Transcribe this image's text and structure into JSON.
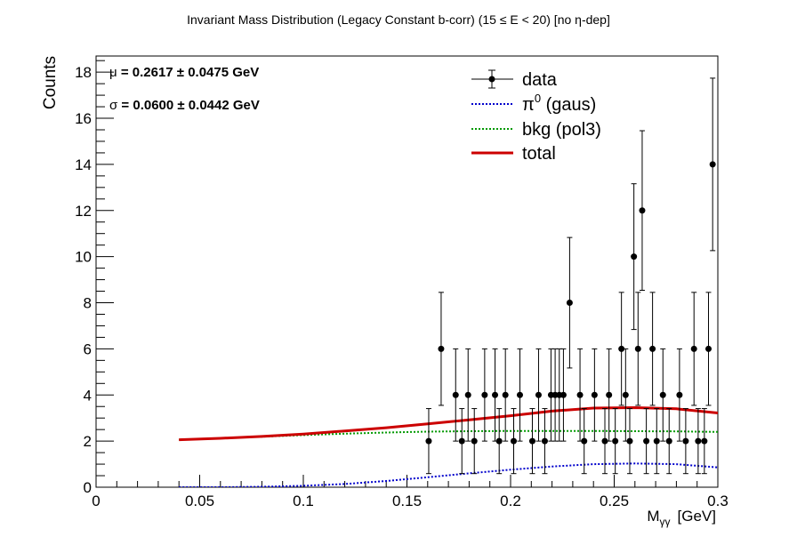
{
  "chart_data": {
    "type": "scatter",
    "title": "Invariant Mass Distribution (Legacy Constant b-corr)   (15 ≤ E < 20)   [no η-dep]",
    "xlabel": "Mγγ  [GeV]",
    "xlabel_main": "M",
    "xlabel_sub": "γγ",
    "xlabel_unit": "[GeV]",
    "ylabel": "Counts",
    "xlim": [
      0,
      0.3
    ],
    "ylim": [
      0,
      18.7
    ],
    "x_ticks": [
      0,
      0.05,
      0.1,
      0.15,
      0.2,
      0.25,
      0.3
    ],
    "x_tick_labels": [
      "0",
      "0.05",
      "0.1",
      "0.15",
      "0.2",
      "0.25",
      "0.3"
    ],
    "y_ticks": [
      0,
      2,
      4,
      6,
      8,
      10,
      12,
      14,
      16,
      18
    ],
    "y_tick_labels": [
      "0",
      "2",
      "4",
      "6",
      "8",
      "10",
      "12",
      "14",
      "16",
      "18"
    ],
    "grid": false,
    "legend_position": "top-right",
    "annotations": [
      {
        "symbol": "μ",
        "text": " = 0.2617  ± 0.0475 GeV"
      },
      {
        "symbol": "σ",
        "text": " = 0.0600  ± 0.0442 GeV"
      }
    ],
    "series": [
      {
        "name": "data",
        "kind": "points_with_errors",
        "color": "#000000",
        "x": [
          0.1605,
          0.1665,
          0.1735,
          0.1765,
          0.1795,
          0.1825,
          0.1875,
          0.1925,
          0.1945,
          0.1975,
          0.2015,
          0.2045,
          0.2105,
          0.2135,
          0.2165,
          0.2195,
          0.2215,
          0.2235,
          0.2255,
          0.2285,
          0.2335,
          0.2355,
          0.2405,
          0.2455,
          0.2475,
          0.2505,
          0.2535,
          0.2555,
          0.2575,
          0.2595,
          0.2615,
          0.2635,
          0.2655,
          0.2685,
          0.2705,
          0.2735,
          0.2765,
          0.2815,
          0.2845,
          0.2885,
          0.2905,
          0.2935,
          0.2955,
          0.2975
        ],
        "y": [
          2,
          6,
          4,
          2,
          4,
          2,
          4,
          4,
          2,
          4,
          2,
          4,
          2,
          4,
          2,
          4,
          4,
          4,
          4,
          8,
          4,
          2,
          4,
          2,
          4,
          2,
          6,
          4,
          2,
          10,
          6,
          12,
          2,
          6,
          2,
          4,
          2,
          4,
          2,
          6,
          2,
          2,
          6,
          14
        ],
        "err": [
          1.41,
          2.45,
          2.0,
          1.41,
          2.0,
          1.41,
          2.0,
          2.0,
          1.41,
          2.0,
          1.41,
          2.0,
          1.41,
          2.0,
          1.41,
          2.0,
          2.0,
          2.0,
          2.0,
          2.83,
          2.0,
          1.41,
          2.0,
          1.41,
          2.0,
          1.41,
          2.45,
          2.0,
          1.41,
          3.16,
          2.45,
          3.46,
          1.41,
          2.45,
          1.41,
          2.0,
          1.41,
          2.0,
          1.41,
          2.45,
          1.41,
          1.41,
          2.45,
          3.74
        ]
      },
      {
        "name": "π⁰ (gaus)",
        "legend_main": "π",
        "legend_sup": "0",
        "legend_rest": " (gaus)",
        "kind": "dotted_line",
        "color": "#0000cc",
        "x": [
          0.04,
          0.06,
          0.08,
          0.1,
          0.12,
          0.14,
          0.16,
          0.18,
          0.2,
          0.22,
          0.24,
          0.26,
          0.28,
          0.3
        ],
        "y": [
          0.0,
          0.0,
          0.02,
          0.06,
          0.14,
          0.27,
          0.43,
          0.6,
          0.76,
          0.9,
          1.0,
          1.03,
          1.0,
          0.86
        ]
      },
      {
        "name": "bkg (pol3)",
        "kind": "dotted_line",
        "color": "#009900",
        "x": [
          0.04,
          0.06,
          0.08,
          0.1,
          0.12,
          0.14,
          0.16,
          0.18,
          0.2,
          0.22,
          0.24,
          0.26,
          0.28,
          0.3
        ],
        "y": [
          2.06,
          2.12,
          2.19,
          2.26,
          2.32,
          2.37,
          2.41,
          2.43,
          2.44,
          2.44,
          2.44,
          2.43,
          2.42,
          2.4
        ]
      },
      {
        "name": "total",
        "kind": "solid_line",
        "color": "#cc0000",
        "x": [
          0.04,
          0.06,
          0.08,
          0.1,
          0.12,
          0.14,
          0.16,
          0.18,
          0.2,
          0.22,
          0.24,
          0.26,
          0.28,
          0.3
        ],
        "y": [
          2.06,
          2.12,
          2.2,
          2.3,
          2.44,
          2.58,
          2.75,
          2.92,
          3.1,
          3.3,
          3.43,
          3.45,
          3.4,
          3.22
        ]
      }
    ]
  }
}
